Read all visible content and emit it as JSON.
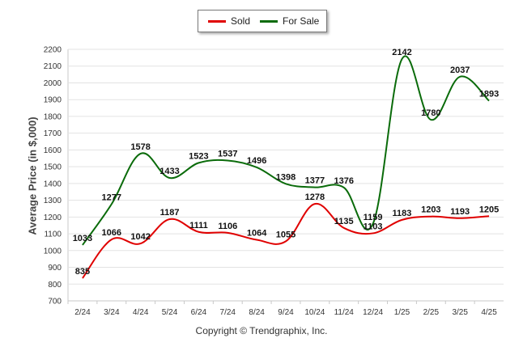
{
  "chart_data": {
    "type": "line",
    "title": "",
    "ylabel": "Average Price (in $,000)",
    "xlabel": "",
    "categories": [
      "2/24",
      "3/24",
      "4/24",
      "5/24",
      "6/24",
      "7/24",
      "8/24",
      "9/24",
      "10/24",
      "11/24",
      "12/24",
      "1/25",
      "2/25",
      "3/25",
      "4/25"
    ],
    "ylim": [
      700,
      2200
    ],
    "yticks": [
      700,
      800,
      900,
      1000,
      1100,
      1200,
      1300,
      1400,
      1500,
      1600,
      1700,
      1800,
      1900,
      2000,
      2100,
      2200
    ],
    "grid": true,
    "legend": "top-center",
    "series": [
      {
        "name": "Sold",
        "color": "#e00000",
        "values": [
          835,
          1066,
          1042,
          1187,
          1111,
          1106,
          1064,
          1055,
          1278,
          1135,
          1103,
          1183,
          1203,
          1193,
          1205
        ]
      },
      {
        "name": "For Sale",
        "color": "#0a6b0a",
        "values": [
          1033,
          1277,
          1578,
          1433,
          1523,
          1537,
          1496,
          1398,
          1377,
          1376,
          1159,
          2142,
          1780,
          2037,
          1893
        ]
      }
    ]
  },
  "footer": "Copyright © Trendgraphix, Inc."
}
